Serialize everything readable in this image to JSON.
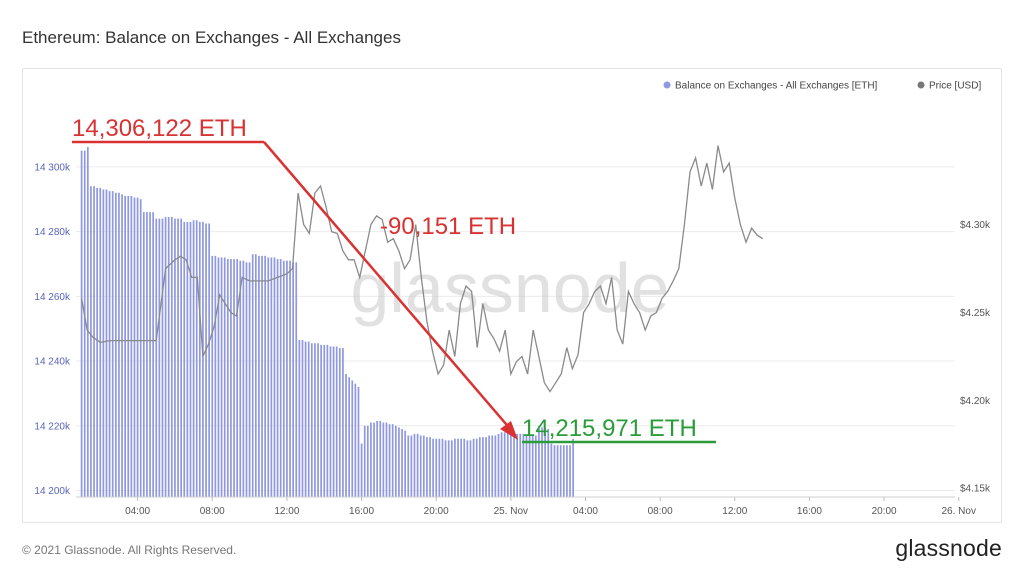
{
  "page": {
    "title": "Ethereum: Balance on Exchanges - All Exchanges",
    "copyright": "© 2021 Glassnode. All Rights Reserved.",
    "brand": "glassnode",
    "watermark": "glassnode"
  },
  "colors": {
    "balance_bar": "#8f98e0",
    "price_line": "#8a8a8a",
    "annotation_red": "#d93232",
    "annotation_green": "#2a9d3a"
  },
  "chart_data": {
    "type": "bar",
    "title": "Ethereum: Balance on Exchanges - All Exchanges",
    "legend_position": "top-right",
    "x_ticks": [
      "04:00",
      "08:00",
      "12:00",
      "16:00",
      "20:00",
      "25. Nov",
      "04:00",
      "08:00",
      "12:00",
      "16:00",
      "20:00",
      "26. Nov"
    ],
    "x_range_hours": [
      -3.3,
      43.8
    ],
    "y_left": {
      "ticks": [
        "14 200k",
        "14 220k",
        "14 240k",
        "14 260k",
        "14 280k",
        "14 300k"
      ],
      "range": [
        14198000,
        14312000
      ]
    },
    "y_right": {
      "ticks": [
        "$4.15k",
        "$4.20k",
        "$4.25k",
        "$4.30k"
      ],
      "range": [
        4145,
        4355
      ]
    },
    "grid": true,
    "series": [
      {
        "name": "Balance on Exchanges - All Exchanges [ETH]",
        "axis": "left",
        "type": "bar",
        "x_start_hour": -3.0,
        "x_step_hour": 0.1667,
        "values": [
          14305000,
          14305000,
          14306122,
          14294000,
          14294000,
          14293500,
          14293500,
          14293000,
          14293000,
          14292500,
          14292500,
          14292000,
          14292000,
          14291500,
          14291000,
          14291000,
          14291000,
          14290500,
          14290500,
          14290000,
          14286000,
          14286000,
          14286000,
          14286000,
          14284000,
          14284000,
          14284000,
          14284500,
          14284500,
          14284500,
          14284000,
          14284000,
          14284000,
          14283000,
          14283000,
          14283000,
          14283500,
          14283500,
          14283000,
          14283000,
          14282500,
          14282500,
          14272500,
          14272500,
          14272000,
          14272000,
          14272000,
          14271500,
          14271500,
          14271500,
          14271500,
          14271000,
          14271000,
          14270500,
          14270500,
          14273000,
          14273000,
          14272500,
          14272500,
          14272500,
          14272000,
          14272000,
          14272000,
          14271500,
          14271500,
          14271000,
          14271000,
          14271000,
          14270500,
          14270500,
          14246500,
          14246500,
          14246000,
          14246000,
          14245500,
          14245500,
          14245500,
          14245000,
          14245000,
          14245000,
          14244500,
          14244500,
          14244500,
          14244000,
          14244000,
          14236000,
          14235000,
          14234000,
          14233000,
          14232000,
          14214500,
          14220000,
          14220000,
          14221000,
          14221000,
          14221500,
          14221500,
          14221000,
          14221000,
          14220500,
          14220500,
          14220000,
          14219500,
          14219000,
          14218500,
          14217000,
          14217000,
          14217500,
          14217500,
          14217000,
          14217000,
          14216500,
          14216500,
          14216000,
          14216000,
          14216000,
          14216000,
          14215500,
          14215500,
          14215500,
          14216000,
          14216000,
          14216000,
          14216000,
          14215500,
          14215500,
          14216000,
          14216000,
          14216500,
          14216500,
          14216500,
          14217000,
          14217000,
          14217000,
          14217500,
          14218000,
          14218000,
          14218000,
          14218000,
          14217500,
          14217500,
          14217500,
          14217500,
          14217000,
          14217000,
          14217000,
          14217000,
          14220000,
          14219500,
          14219500,
          14219000,
          14214500,
          14214000,
          14214000,
          14214000,
          14214000,
          14214000,
          14214000,
          14215971
        ]
      },
      {
        "name": "Price [USD]",
        "axis": "right",
        "type": "line",
        "x": [
          -3.0,
          -2.7,
          -2.4,
          -2.0,
          -1.5,
          -1.0,
          0.0,
          0.5,
          1.0,
          1.5,
          2.0,
          2.3,
          2.6,
          2.9,
          3.2,
          3.5,
          3.8,
          4.1,
          4.4,
          4.7,
          5.0,
          5.3,
          5.6,
          6.0,
          6.5,
          7.0,
          7.5,
          8.0,
          8.3,
          8.6,
          8.9,
          9.2,
          9.5,
          9.8,
          10.1,
          10.4,
          10.7,
          11.0,
          11.3,
          11.6,
          11.9,
          12.2,
          12.5,
          12.8,
          13.1,
          13.4,
          13.7,
          14.0,
          14.3,
          14.6,
          14.9,
          15.2,
          15.5,
          15.8,
          16.1,
          16.4,
          16.7,
          17.0,
          17.3,
          17.6,
          17.9,
          18.2,
          18.5,
          18.8,
          19.1,
          19.4,
          19.7,
          20.0,
          20.3,
          20.6,
          20.9,
          21.2,
          21.5,
          21.8,
          22.1,
          22.4,
          22.7,
          23.0,
          23.3,
          23.6,
          23.9,
          24.2,
          24.5,
          24.8,
          25.1,
          25.4,
          25.7,
          26.0,
          26.3,
          26.6,
          26.9,
          27.2,
          27.5,
          27.8
        ],
        "values": [
          4258,
          4240,
          4236,
          4233,
          4234,
          4234,
          4234,
          4234,
          4234,
          4275,
          4280,
          4282,
          4280,
          4270,
          4270,
          4225,
          4232,
          4242,
          4260,
          4255,
          4250,
          4248,
          4270,
          4268,
          4268,
          4268,
          4270,
          4272,
          4275,
          4318,
          4300,
          4295,
          4318,
          4322,
          4310,
          4296,
          4295,
          4285,
          4280,
          4280,
          4270,
          4285,
          4300,
          4305,
          4303,
          4290,
          4292,
          4285,
          4275,
          4280,
          4300,
          4270,
          4245,
          4228,
          4215,
          4220,
          4240,
          4225,
          4255,
          4265,
          4262,
          4230,
          4255,
          4240,
          4235,
          4228,
          4240,
          4215,
          4222,
          4225,
          4215,
          4240,
          4225,
          4210,
          4205,
          4210,
          4215,
          4230,
          4218,
          4226,
          4250,
          4255,
          4262,
          4265,
          4255,
          4270,
          4240,
          4232,
          4262,
          4255,
          4250,
          4240,
          4248,
          4250
        ]
      }
    ],
    "price_line_extra": {
      "x": [
        28.1,
        28.4,
        28.7,
        29.0,
        29.3,
        29.6,
        29.9,
        30.2,
        30.5,
        30.8,
        31.1,
        31.4,
        31.7,
        32.0,
        32.3,
        32.6,
        32.9,
        33.2,
        33.5
      ],
      "values": [
        4258,
        4262,
        4268,
        4275,
        4300,
        4330,
        4338,
        4322,
        4335,
        4320,
        4345,
        4330,
        4335,
        4315,
        4300,
        4290,
        4298,
        4294,
        4292
      ]
    },
    "annotations": {
      "start_label": "14,306,122 ETH",
      "end_label": "14,215,971 ETH",
      "change_label": "-90,151 ETH"
    }
  }
}
